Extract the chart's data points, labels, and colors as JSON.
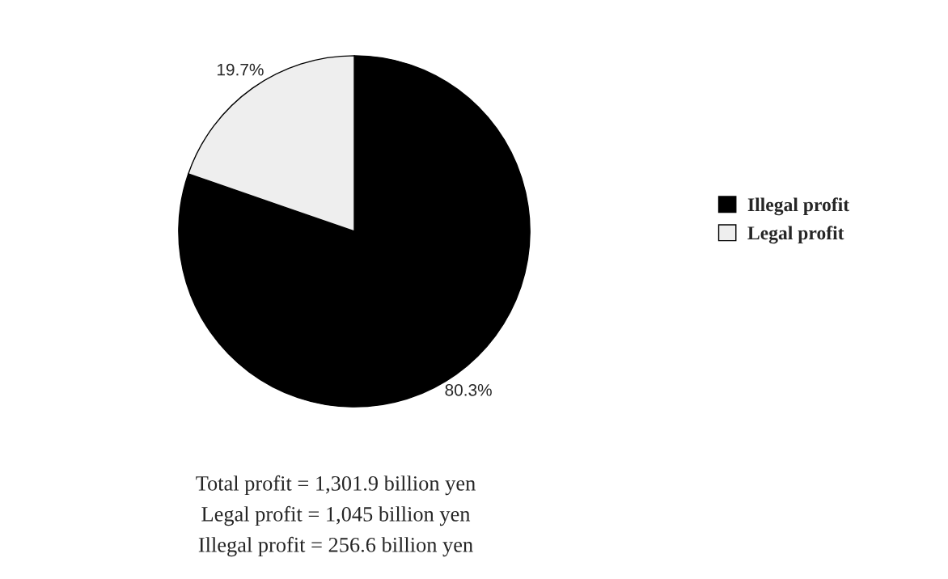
{
  "chart_data": {
    "type": "pie",
    "categories": [
      "Illegal profit",
      "Legal profit"
    ],
    "values": [
      80.3,
      19.7
    ],
    "colors": [
      "#000000",
      "#eeeeee"
    ],
    "value_labels": [
      "80.3%",
      "19.7%"
    ],
    "legend": "right",
    "annotations": [
      "Total profit = 1,301.9 billion yen",
      "Legal profit = 1,045 billion yen",
      "Illegal profit = 256.6 billion yen"
    ]
  }
}
